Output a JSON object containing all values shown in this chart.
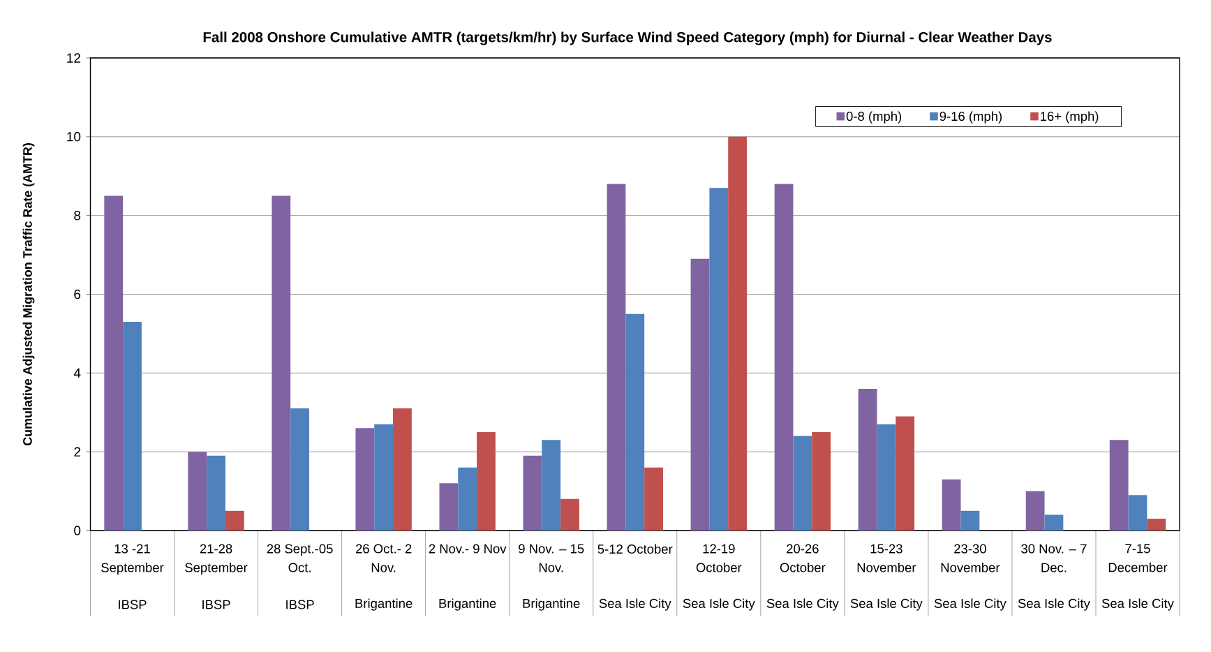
{
  "chart_data": {
    "type": "bar",
    "title": "Fall 2008 Onshore Cumulative AMTR (targets/km/hr) by Surface Wind Speed Category (mph) for Diurnal - Clear Weather Days",
    "ylabel": "Cumulative Adjusted Migration Traffic Rate (AMTR)",
    "categories": [
      "13 -21 September",
      "21-28 September",
      "28 Sept.-05 Oct.",
      "26 Oct.- 2 Nov.",
      "2 Nov.- 9 Nov",
      "9 Nov. – 15 Nov.",
      "5-12 October",
      "12-19 October",
      "20-26 October",
      "15-23 November",
      "23-30 November",
      "30 Nov. – 7 Dec.",
      "7-15 December"
    ],
    "series": [
      {
        "name": "0-8 (mph)",
        "color": "#8064a2",
        "values": [
          8.5,
          2.0,
          8.5,
          2.6,
          1.2,
          1.9,
          8.8,
          6.9,
          8.8,
          3.6,
          1.3,
          1.0,
          2.3
        ]
      },
      {
        "name": "9-16 (mph)",
        "color": "#4f81bd",
        "values": [
          5.3,
          1.9,
          3.1,
          2.7,
          1.6,
          2.3,
          5.5,
          8.7,
          2.4,
          2.7,
          0.5,
          0.4,
          0.9
        ]
      },
      {
        "name": "16+ (mph)",
        "color": "#c0504d",
        "values": [
          null,
          0.5,
          null,
          3.1,
          2.5,
          0.8,
          1.6,
          10,
          2.5,
          2.9,
          null,
          null,
          0.3
        ]
      }
    ],
    "ylim": [
      0,
      12
    ],
    "yticks": [
      0,
      2,
      4,
      6,
      8,
      10,
      12
    ],
    "grid": "y",
    "legend": "top right",
    "annotations": [
      "IBSP",
      "IBSP",
      "IBSP",
      "Brigantine",
      "Brigantine",
      "Brigantine",
      "Sea Isle City",
      "Sea Isle City",
      "Sea Isle City",
      "Sea Isle City",
      "Sea Isle City",
      "Sea Isle City",
      "Sea Isle City"
    ]
  }
}
